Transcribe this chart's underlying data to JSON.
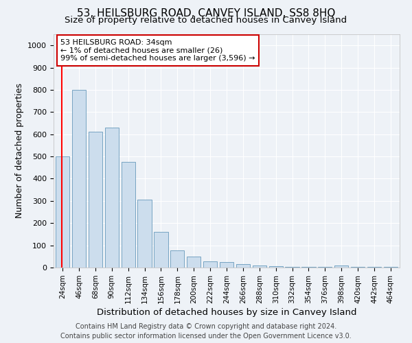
{
  "title": "53, HEILSBURG ROAD, CANVEY ISLAND, SS8 8HQ",
  "subtitle": "Size of property relative to detached houses in Canvey Island",
  "xlabel": "Distribution of detached houses by size in Canvey Island",
  "ylabel": "Number of detached properties",
  "categories": [
    "24sqm",
    "46sqm",
    "68sqm",
    "90sqm",
    "112sqm",
    "134sqm",
    "156sqm",
    "178sqm",
    "200sqm",
    "222sqm",
    "244sqm",
    "266sqm",
    "288sqm",
    "310sqm",
    "332sqm",
    "354sqm",
    "376sqm",
    "398sqm",
    "420sqm",
    "442sqm",
    "464sqm"
  ],
  "values": [
    500,
    800,
    610,
    630,
    475,
    305,
    160,
    78,
    50,
    28,
    25,
    15,
    10,
    5,
    3,
    3,
    2,
    10,
    2,
    2,
    2
  ],
  "bar_color": "#ccdded",
  "bar_edge_color": "#6699bb",
  "annotation_text": "53 HEILSBURG ROAD: 34sqm\n← 1% of detached houses are smaller (26)\n99% of semi-detached houses are larger (3,596) →",
  "annotation_box_color": "#ffffff",
  "annotation_box_edge": "#cc0000",
  "ylim": [
    0,
    1050
  ],
  "yticks": [
    0,
    100,
    200,
    300,
    400,
    500,
    600,
    700,
    800,
    900,
    1000
  ],
  "footer_line1": "Contains HM Land Registry data © Crown copyright and database right 2024.",
  "footer_line2": "Contains public sector information licensed under the Open Government Licence v3.0.",
  "background_color": "#eef2f7",
  "grid_color": "#ffffff",
  "title_fontsize": 11,
  "subtitle_fontsize": 9.5,
  "axis_label_fontsize": 9,
  "tick_fontsize": 7.5,
  "footer_fontsize": 7
}
